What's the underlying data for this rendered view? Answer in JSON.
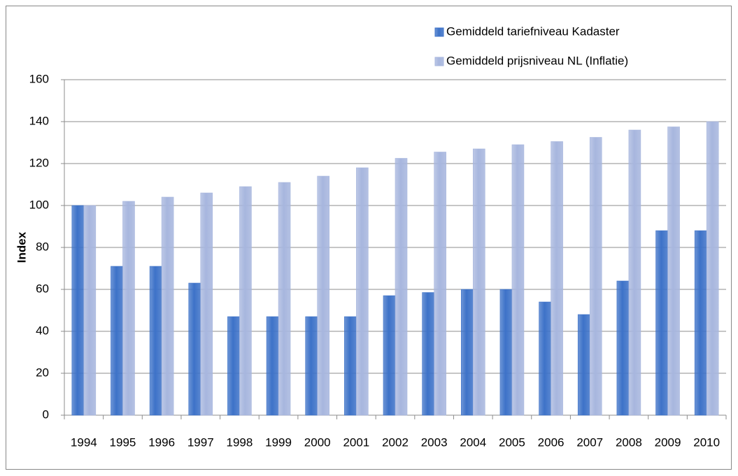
{
  "chart_data": {
    "type": "bar",
    "y_label": "Index",
    "categories": [
      "1994",
      "1995",
      "1996",
      "1997",
      "1998",
      "1999",
      "2000",
      "2001",
      "2002",
      "2003",
      "2004",
      "2005",
      "2006",
      "2007",
      "2008",
      "2009",
      "2010"
    ],
    "series": [
      {
        "name": "Gemiddeld tariefniveau Kadaster",
        "color": "#3d72c8",
        "values": [
          100,
          71,
          71,
          63,
          47,
          47,
          47,
          47,
          57,
          58.5,
          60,
          60,
          54,
          48,
          64,
          88,
          88
        ]
      },
      {
        "name": "Gemiddeld prijsniveau NL (Inflatie)",
        "color": "#a7b6de",
        "values": [
          100,
          102,
          104,
          106,
          109,
          111,
          114,
          118,
          122.5,
          125.5,
          127,
          129,
          130.5,
          132.5,
          136,
          137.5,
          140
        ]
      }
    ],
    "ylim": [
      0,
      160
    ],
    "yticks": [
      0,
      20,
      40,
      60,
      80,
      100,
      120,
      140,
      160
    ],
    "grid": true,
    "legend": "top-right"
  }
}
